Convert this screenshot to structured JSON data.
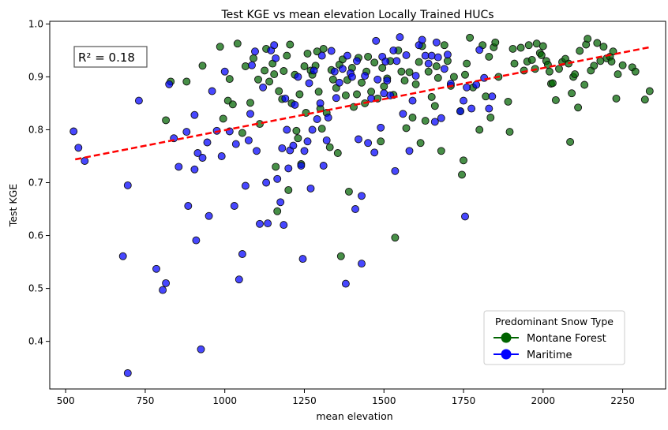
{
  "chart_data": {
    "type": "scatter",
    "title": "Test KGE vs mean elevation Locally Trained HUCs",
    "xlabel": "mean elevation",
    "ylabel": "Test KGE",
    "xlim": [
      450,
      2385
    ],
    "ylim": [
      0.31,
      1.005
    ],
    "xticks": [
      500,
      750,
      1000,
      1250,
      1500,
      1750,
      2000,
      2250
    ],
    "yticks": [
      0.4,
      0.5,
      0.6,
      0.7,
      0.8,
      0.9,
      1.0
    ],
    "xtick_labels": [
      "500",
      "750",
      "1000",
      "1250",
      "1500",
      "1750",
      "2000",
      "2250"
    ],
    "ytick_labels": [
      "0.4",
      "0.5",
      "0.6",
      "0.7",
      "0.8",
      "0.9",
      "1.0"
    ],
    "grid": false,
    "annotation": "R² = 0.18",
    "annotation_color": "#ff0000",
    "legend": {
      "title": "Predominant Snow Type",
      "placement": "lower-right",
      "entries": [
        "Montane Forest",
        "Maritime"
      ]
    },
    "trend_line": {
      "x": [
        530,
        2335
      ],
      "y": [
        0.744,
        0.956
      ],
      "color": "#ff0000",
      "style": "dashed"
    },
    "series": [
      {
        "name": "Montane Forest",
        "color": "#006400",
        "points": [
          [
            815,
            0.818
          ],
          [
            830,
            0.891
          ],
          [
            880,
            0.891
          ],
          [
            930,
            0.921
          ],
          [
            985,
            0.957
          ],
          [
            995,
            0.821
          ],
          [
            1010,
            0.855
          ],
          [
            1015,
            0.896
          ],
          [
            1025,
            0.848
          ],
          [
            1040,
            0.963
          ],
          [
            1055,
            0.794
          ],
          [
            1065,
            0.92
          ],
          [
            1080,
            0.851
          ],
          [
            1090,
            0.935
          ],
          [
            1105,
            0.895
          ],
          [
            1110,
            0.811
          ],
          [
            1125,
            0.912
          ],
          [
            1130,
            0.953
          ],
          [
            1140,
            0.891
          ],
          [
            1150,
            0.925
          ],
          [
            1155,
            0.905
          ],
          [
            1160,
            0.73
          ],
          [
            1165,
            0.646
          ],
          [
            1170,
            0.873
          ],
          [
            1180,
            0.858
          ],
          [
            1185,
            0.911
          ],
          [
            1195,
            0.94
          ],
          [
            1200,
            0.686
          ],
          [
            1205,
            0.961
          ],
          [
            1210,
            0.85
          ],
          [
            1220,
            0.904
          ],
          [
            1225,
            0.798
          ],
          [
            1230,
            0.784
          ],
          [
            1235,
            0.867
          ],
          [
            1240,
            0.735
          ],
          [
            1250,
            0.92
          ],
          [
            1255,
            0.832
          ],
          [
            1260,
            0.944
          ],
          [
            1270,
            0.912
          ],
          [
            1275,
            0.904
          ],
          [
            1285,
            0.921
          ],
          [
            1290,
            0.948
          ],
          [
            1295,
            0.872
          ],
          [
            1300,
            0.84
          ],
          [
            1305,
            0.802
          ],
          [
            1310,
            0.953
          ],
          [
            1320,
            0.832
          ],
          [
            1330,
            0.767
          ],
          [
            1335,
            0.913
          ],
          [
            1340,
            0.895
          ],
          [
            1350,
            0.879
          ],
          [
            1355,
            0.756
          ],
          [
            1360,
            0.923
          ],
          [
            1365,
            0.561
          ],
          [
            1370,
            0.933
          ],
          [
            1380,
            0.865
          ],
          [
            1385,
            0.894
          ],
          [
            1390,
            0.683
          ],
          [
            1400,
            0.917
          ],
          [
            1405,
            0.843
          ],
          [
            1415,
            0.867
          ],
          [
            1420,
            0.936
          ],
          [
            1430,
            0.889
          ],
          [
            1440,
            0.85
          ],
          [
            1445,
            0.91
          ],
          [
            1450,
            0.938
          ],
          [
            1460,
            0.872
          ],
          [
            1470,
            0.927
          ],
          [
            1480,
            0.859
          ],
          [
            1490,
            0.778
          ],
          [
            1495,
            0.917
          ],
          [
            1500,
            0.882
          ],
          [
            1510,
            0.897
          ],
          [
            1520,
            0.93
          ],
          [
            1530,
            0.866
          ],
          [
            1535,
            0.596
          ],
          [
            1545,
            0.95
          ],
          [
            1555,
            0.91
          ],
          [
            1565,
            0.893
          ],
          [
            1570,
            0.803
          ],
          [
            1580,
            0.909
          ],
          [
            1590,
            0.823
          ],
          [
            1600,
            0.886
          ],
          [
            1610,
            0.928
          ],
          [
            1615,
            0.775
          ],
          [
            1620,
            0.958
          ],
          [
            1630,
            0.817
          ],
          [
            1640,
            0.91
          ],
          [
            1650,
            0.862
          ],
          [
            1660,
            0.845
          ],
          [
            1665,
            0.92
          ],
          [
            1670,
            0.898
          ],
          [
            1680,
            0.76
          ],
          [
            1690,
            0.96
          ],
          [
            1700,
            0.93
          ],
          [
            1710,
            0.883
          ],
          [
            1720,
            0.9
          ],
          [
            1740,
            0.835
          ],
          [
            1745,
            0.715
          ],
          [
            1750,
            0.742
          ],
          [
            1755,
            0.904
          ],
          [
            1760,
            0.925
          ],
          [
            1770,
            0.974
          ],
          [
            1780,
            0.88
          ],
          [
            1800,
            0.8
          ],
          [
            1810,
            0.96
          ],
          [
            1820,
            0.863
          ],
          [
            1830,
            0.938
          ],
          [
            1835,
            0.823
          ],
          [
            1845,
            0.956
          ],
          [
            1850,
            0.965
          ],
          [
            1860,
            0.9
          ],
          [
            1890,
            0.853
          ],
          [
            1895,
            0.796
          ],
          [
            1905,
            0.953
          ],
          [
            1910,
            0.925
          ],
          [
            1930,
            0.955
          ],
          [
            1940,
            0.912
          ],
          [
            1950,
            0.929
          ],
          [
            1955,
            0.96
          ],
          [
            1965,
            0.932
          ],
          [
            1975,
            0.915
          ],
          [
            1980,
            0.963
          ],
          [
            1990,
            0.945
          ],
          [
            1995,
            0.941
          ],
          [
            2000,
            0.958
          ],
          [
            2010,
            0.93
          ],
          [
            2015,
            0.923
          ],
          [
            2020,
            0.91
          ],
          [
            2025,
            0.887
          ],
          [
            2030,
            0.888
          ],
          [
            2040,
            0.856
          ],
          [
            2050,
            0.915
          ],
          [
            2060,
            0.928
          ],
          [
            2070,
            0.934
          ],
          [
            2080,
            0.925
          ],
          [
            2085,
            0.777
          ],
          [
            2090,
            0.869
          ],
          [
            2095,
            0.9
          ],
          [
            2100,
            0.905
          ],
          [
            2110,
            0.842
          ],
          [
            2115,
            0.949
          ],
          [
            2130,
            0.885
          ],
          [
            2135,
            0.961
          ],
          [
            2140,
            0.972
          ],
          [
            2150,
            0.912
          ],
          [
            2160,
            0.921
          ],
          [
            2170,
            0.964
          ],
          [
            2180,
            0.93
          ],
          [
            2190,
            0.957
          ],
          [
            2200,
            0.935
          ],
          [
            2210,
            0.938
          ],
          [
            2215,
            0.929
          ],
          [
            2220,
            0.948
          ],
          [
            2230,
            0.859
          ],
          [
            2235,
            0.905
          ],
          [
            2250,
            0.922
          ],
          [
            2280,
            0.918
          ],
          [
            2290,
            0.91
          ],
          [
            2320,
            0.857
          ],
          [
            2335,
            0.873
          ]
        ]
      },
      {
        "name": "Maritime",
        "color": "#0000ff",
        "points": [
          [
            525,
            0.797
          ],
          [
            540,
            0.766
          ],
          [
            560,
            0.741
          ],
          [
            730,
            0.855
          ],
          [
            680,
            0.561
          ],
          [
            695,
            0.695
          ],
          [
            695,
            0.34
          ],
          [
            785,
            0.537
          ],
          [
            805,
            0.497
          ],
          [
            815,
            0.51
          ],
          [
            825,
            0.886
          ],
          [
            840,
            0.784
          ],
          [
            855,
            0.73
          ],
          [
            880,
            0.796
          ],
          [
            885,
            0.656
          ],
          [
            905,
            0.828
          ],
          [
            905,
            0.725
          ],
          [
            910,
            0.591
          ],
          [
            915,
            0.756
          ],
          [
            925,
            0.385
          ],
          [
            930,
            0.747
          ],
          [
            945,
            0.776
          ],
          [
            950,
            0.637
          ],
          [
            960,
            0.873
          ],
          [
            975,
            0.798
          ],
          [
            990,
            0.75
          ],
          [
            1000,
            0.91
          ],
          [
            1015,
            0.797
          ],
          [
            1030,
            0.656
          ],
          [
            1035,
            0.773
          ],
          [
            1045,
            0.517
          ],
          [
            1055,
            0.565
          ],
          [
            1065,
            0.694
          ],
          [
            1075,
            0.78
          ],
          [
            1080,
            0.83
          ],
          [
            1085,
            0.922
          ],
          [
            1095,
            0.948
          ],
          [
            1100,
            0.76
          ],
          [
            1110,
            0.622
          ],
          [
            1120,
            0.88
          ],
          [
            1130,
            0.7
          ],
          [
            1135,
            0.623
          ],
          [
            1145,
            0.95
          ],
          [
            1155,
            0.96
          ],
          [
            1160,
            0.935
          ],
          [
            1165,
            0.707
          ],
          [
            1175,
            0.663
          ],
          [
            1180,
            0.765
          ],
          [
            1185,
            0.62
          ],
          [
            1190,
            0.859
          ],
          [
            1195,
            0.8
          ],
          [
            1200,
            0.727
          ],
          [
            1205,
            0.761
          ],
          [
            1215,
            0.77
          ],
          [
            1220,
            0.847
          ],
          [
            1230,
            0.9
          ],
          [
            1240,
            0.732
          ],
          [
            1245,
            0.556
          ],
          [
            1250,
            0.76
          ],
          [
            1260,
            0.778
          ],
          [
            1265,
            0.888
          ],
          [
            1270,
            0.689
          ],
          [
            1275,
            0.8
          ],
          [
            1280,
            0.912
          ],
          [
            1290,
            0.82
          ],
          [
            1300,
            0.85
          ],
          [
            1305,
            0.94
          ],
          [
            1310,
            0.732
          ],
          [
            1320,
            0.78
          ],
          [
            1325,
            0.823
          ],
          [
            1335,
            0.949
          ],
          [
            1345,
            0.91
          ],
          [
            1350,
            0.86
          ],
          [
            1360,
            0.889
          ],
          [
            1370,
            0.915
          ],
          [
            1380,
            0.509
          ],
          [
            1385,
            0.94
          ],
          [
            1395,
            0.907
          ],
          [
            1400,
            0.9
          ],
          [
            1410,
            0.65
          ],
          [
            1415,
            0.93
          ],
          [
            1420,
            0.782
          ],
          [
            1430,
            0.675
          ],
          [
            1430,
            0.547
          ],
          [
            1440,
            0.902
          ],
          [
            1450,
            0.775
          ],
          [
            1460,
            0.859
          ],
          [
            1470,
            0.757
          ],
          [
            1475,
            0.968
          ],
          [
            1480,
            0.895
          ],
          [
            1490,
            0.804
          ],
          [
            1495,
            0.938
          ],
          [
            1500,
            0.869
          ],
          [
            1505,
            0.929
          ],
          [
            1510,
            0.893
          ],
          [
            1520,
            0.865
          ],
          [
            1530,
            0.95
          ],
          [
            1535,
            0.722
          ],
          [
            1540,
            0.93
          ],
          [
            1550,
            0.975
          ],
          [
            1560,
            0.83
          ],
          [
            1570,
            0.941
          ],
          [
            1580,
            0.76
          ],
          [
            1590,
            0.855
          ],
          [
            1600,
            0.902
          ],
          [
            1610,
            0.96
          ],
          [
            1620,
            0.97
          ],
          [
            1630,
            0.94
          ],
          [
            1640,
            0.925
          ],
          [
            1650,
            0.94
          ],
          [
            1660,
            0.815
          ],
          [
            1665,
            0.965
          ],
          [
            1670,
            0.937
          ],
          [
            1680,
            0.822
          ],
          [
            1690,
            0.915
          ],
          [
            1700,
            0.942
          ],
          [
            1710,
            0.887
          ],
          [
            1740,
            0.835
          ],
          [
            1750,
            0.855
          ],
          [
            1755,
            0.636
          ],
          [
            1760,
            0.88
          ],
          [
            1775,
            0.84
          ],
          [
            1790,
            0.885
          ],
          [
            1800,
            0.951
          ],
          [
            1815,
            0.898
          ],
          [
            1830,
            0.84
          ],
          [
            1840,
            0.863
          ]
        ]
      }
    ]
  }
}
